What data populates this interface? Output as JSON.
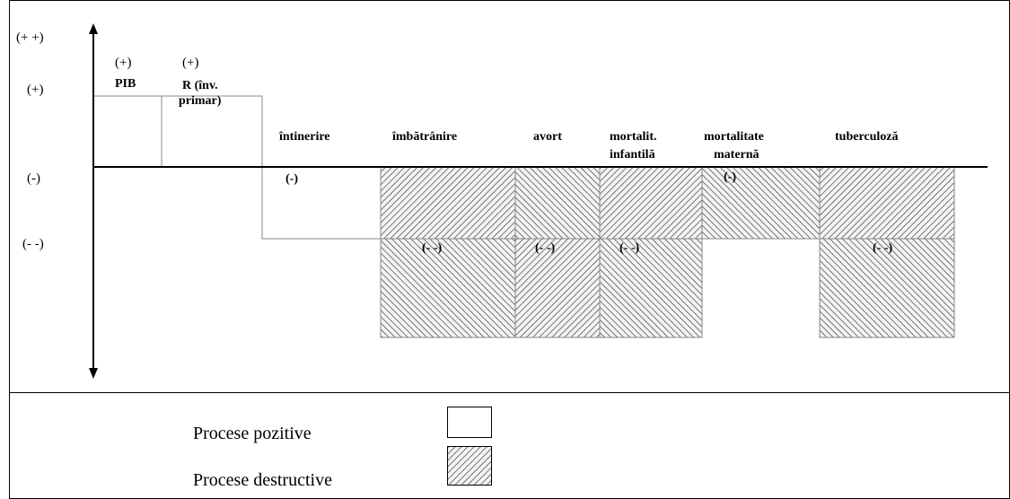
{
  "axis_levels": [
    "(+ +)",
    "(+)",
    "(-)",
    "(- -)"
  ],
  "columns": [
    {
      "level": "(+)",
      "label": [
        "PIB"
      ]
    },
    {
      "level": "(+)",
      "label": [
        "R (înv.",
        "primar)"
      ]
    },
    {
      "level": "(-)",
      "label": [
        "întinerire"
      ]
    },
    {
      "level": "(- -)",
      "label": [
        "îmbătrânire"
      ]
    },
    {
      "level": "(- -)",
      "label": [
        "avort"
      ]
    },
    {
      "level": "(- -)",
      "label": [
        "mortalit.",
        "infantilă"
      ]
    },
    {
      "level": "(-)",
      "label": [
        "mortalitate",
        "maternă"
      ]
    },
    {
      "level": "(- -)",
      "label": [
        "tuberculoză"
      ]
    }
  ],
  "legend": [
    "Procese pozitive",
    "Procese destructive"
  ]
}
